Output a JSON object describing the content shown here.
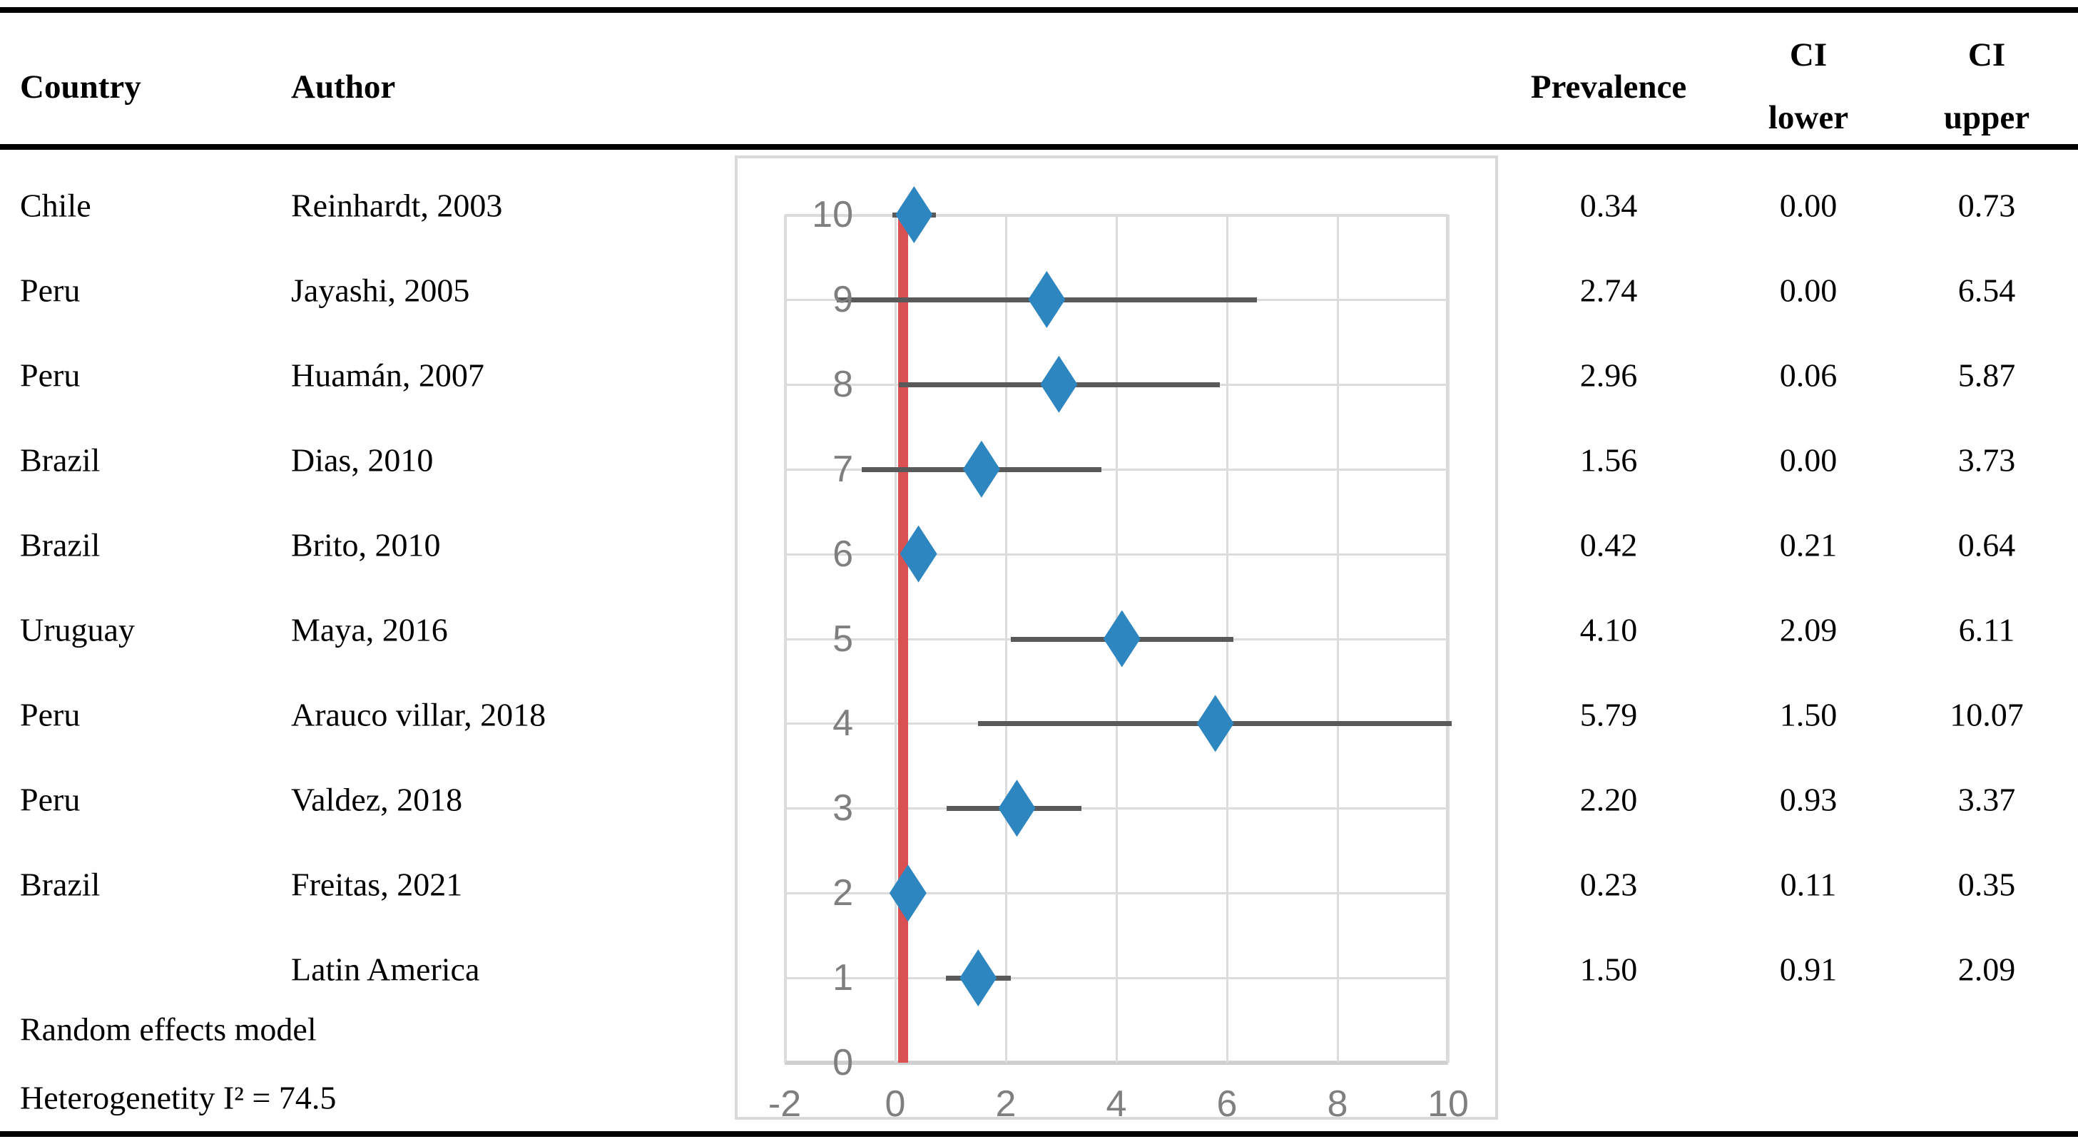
{
  "table": {
    "headers": {
      "country": "Country",
      "author": "Author",
      "prevalence": "Prevalence",
      "ci_lower_line1": "CI",
      "ci_lower_line2": "lower",
      "ci_upper_line1": "CI",
      "ci_upper_line2": "upper"
    },
    "rows": [
      {
        "country": "Chile",
        "author": "Reinhardt, 2003",
        "prevalence": "0.34",
        "ci_lower": "0.00",
        "ci_upper": "0.73"
      },
      {
        "country": "Peru",
        "author": "Jayashi, 2005",
        "prevalence": "2.74",
        "ci_lower": "0.00",
        "ci_upper": "6.54"
      },
      {
        "country": "Peru",
        "author": "Huamán, 2007",
        "prevalence": "2.96",
        "ci_lower": "0.06",
        "ci_upper": "5.87"
      },
      {
        "country": "Brazil",
        "author": "Dias, 2010",
        "prevalence": "1.56",
        "ci_lower": "0.00",
        "ci_upper": "3.73"
      },
      {
        "country": "Brazil",
        "author": "Brito, 2010",
        "prevalence": "0.42",
        "ci_lower": "0.21",
        "ci_upper": "0.64"
      },
      {
        "country": "Uruguay",
        "author": "Maya, 2016",
        "prevalence": "4.10",
        "ci_lower": "2.09",
        "ci_upper": "6.11"
      },
      {
        "country": "Peru",
        "author": "Arauco villar, 2018",
        "prevalence": "5.79",
        "ci_lower": "1.50",
        "ci_upper": "10.07"
      },
      {
        "country": "Peru",
        "author": "Valdez, 2018",
        "prevalence": "2.20",
        "ci_lower": "0.93",
        "ci_upper": "3.37"
      },
      {
        "country": "Brazil",
        "author": "Freitas, 2021",
        "prevalence": "0.23",
        "ci_lower": "0.11",
        "ci_upper": "0.35"
      },
      {
        "country": "",
        "author": "Latin America",
        "prevalence": "1.50",
        "ci_lower": "0.91",
        "ci_upper": "2.09"
      }
    ],
    "footer": {
      "model": "Random effects model",
      "heterogeneity": "Heterogenetity I² = 74.5"
    }
  },
  "chart_data": {
    "type": "scatter",
    "title": "",
    "xlabel": "",
    "ylabel": "",
    "x_axis": {
      "min": -2,
      "max": 10,
      "ticks": [
        -2,
        0,
        2,
        4,
        6,
        8,
        10
      ]
    },
    "y_axis": {
      "min": 0,
      "max": 10,
      "ticks": [
        10,
        9,
        8,
        7,
        6,
        5,
        4,
        3,
        2,
        1,
        0
      ]
    },
    "grid": true,
    "legend": "none",
    "reference_line_x": 0.14,
    "points": [
      {
        "label": "Reinhardt, 2003",
        "y": 10,
        "x": 0.34,
        "ci_lo": -0.05,
        "ci_hi": 0.73
      },
      {
        "label": "Jayashi, 2005",
        "y": 9,
        "x": 2.74,
        "ci_lo": -1.06,
        "ci_hi": 6.54
      },
      {
        "label": "Huamán, 2007",
        "y": 8,
        "x": 2.96,
        "ci_lo": 0.06,
        "ci_hi": 5.87
      },
      {
        "label": "Dias, 2010",
        "y": 7,
        "x": 1.56,
        "ci_lo": -0.61,
        "ci_hi": 3.73
      },
      {
        "label": "Brito, 2010",
        "y": 6,
        "x": 0.42,
        "ci_lo": 0.21,
        "ci_hi": 0.64
      },
      {
        "label": "Maya, 2016",
        "y": 5,
        "x": 4.1,
        "ci_lo": 2.09,
        "ci_hi": 6.11
      },
      {
        "label": "Arauco villar, 2018",
        "y": 4,
        "x": 5.79,
        "ci_lo": 1.5,
        "ci_hi": 10.07
      },
      {
        "label": "Valdez, 2018",
        "y": 3,
        "x": 2.2,
        "ci_lo": 0.93,
        "ci_hi": 3.37
      },
      {
        "label": "Freitas, 2021",
        "y": 2,
        "x": 0.23,
        "ci_lo": 0.11,
        "ci_hi": 0.35
      },
      {
        "label": "Latin America",
        "y": 1,
        "x": 1.5,
        "ci_lo": 0.91,
        "ci_hi": 2.09
      }
    ],
    "colors": {
      "marker": "#2E86C1",
      "ci_line": "#595959",
      "reference_line": "#D95151",
      "gridline": "#DCDCDC",
      "axis_line": "#CFCFCF",
      "tick_label": "#7F7F7F",
      "table_text": "#000000",
      "rule_line": "#000000"
    }
  }
}
